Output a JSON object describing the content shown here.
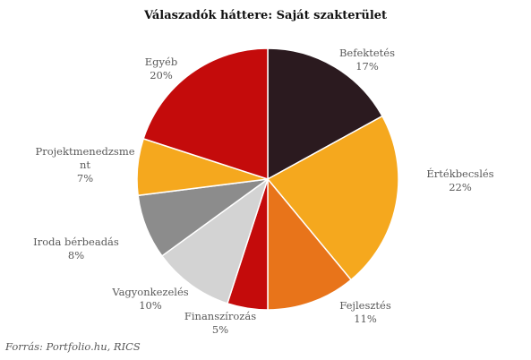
{
  "chart_data": {
    "type": "pie",
    "title": "Válaszadók háttere:  Saját szakterület",
    "slices": [
      {
        "label": "Befektetés",
        "label_lines": [
          "Befektetés"
        ],
        "value": 17,
        "value_label": "17%",
        "color": "#2b1a1f"
      },
      {
        "label": "Értékbecslés",
        "label_lines": [
          "Értékbecslés"
        ],
        "value": 22,
        "value_label": "22%",
        "color": "#f5a81e"
      },
      {
        "label": "Fejlesztés",
        "label_lines": [
          "Fejlesztés"
        ],
        "value": 11,
        "value_label": "11%",
        "color": "#e8741a"
      },
      {
        "label": "Finanszírozás",
        "label_lines": [
          "Finanszírozás"
        ],
        "value": 5,
        "value_label": "5%",
        "color": "#c40b0b"
      },
      {
        "label": "Vagyonkezelés",
        "label_lines": [
          "Vagyonkezelés"
        ],
        "value": 10,
        "value_label": "10%",
        "color": "#d3d3d3"
      },
      {
        "label": "Iroda bérbeadás",
        "label_lines": [
          "Iroda bérbeadás"
        ],
        "value": 8,
        "value_label": "8%",
        "color": "#8c8c8c"
      },
      {
        "label": "Projektmenedzsment",
        "label_lines": [
          "Projektmenedzsme",
          "nt"
        ],
        "value": 7,
        "value_label": "7%",
        "color": "#f5a81e"
      },
      {
        "label": "Egyéb",
        "label_lines": [
          "Egyéb"
        ],
        "value": 20,
        "value_label": "20%",
        "color": "#c40b0b"
      }
    ]
  },
  "source": "Forrás: Portfolio.hu, RICS"
}
